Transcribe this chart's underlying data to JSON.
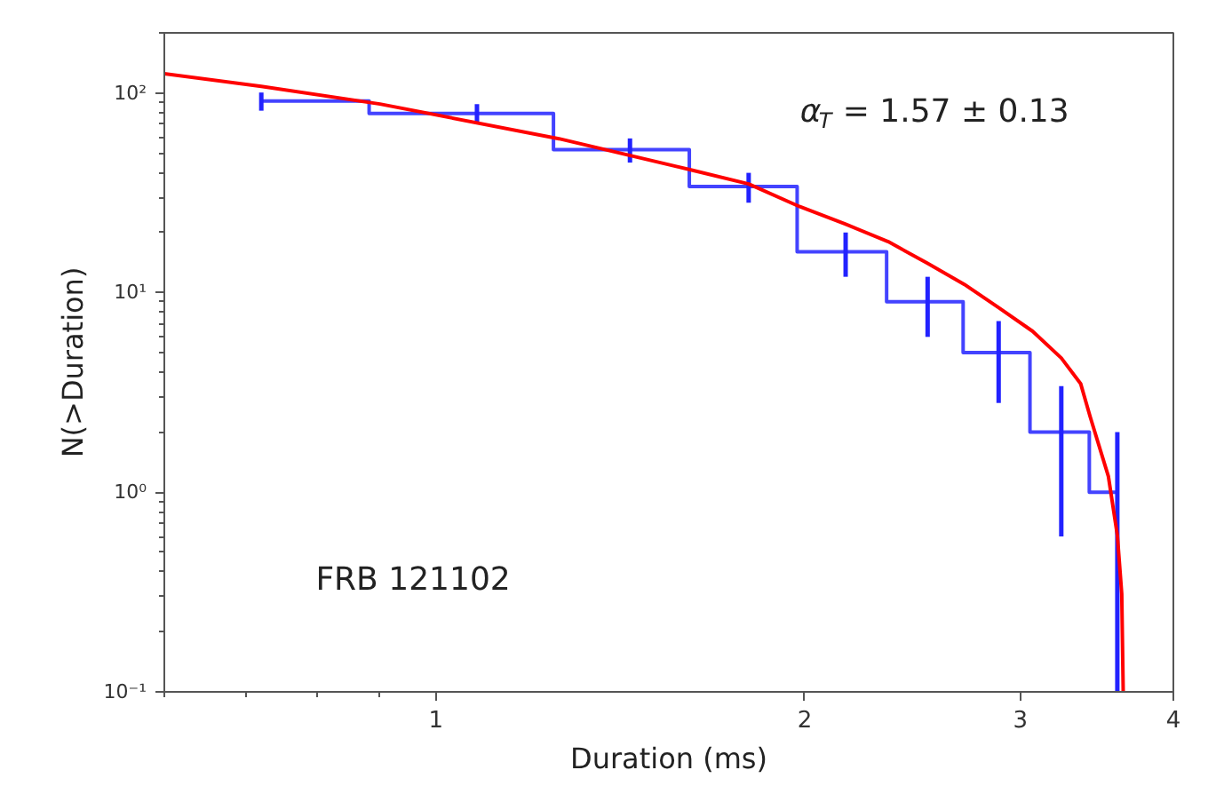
{
  "chart_data": {
    "type": "step",
    "xlabel": "Duration (ms)",
    "ylabel": "N(>Duration)",
    "log": "xy",
    "xlim": [
      0.6,
      4
    ],
    "ylim": [
      0.1,
      200
    ],
    "xticks": [
      1,
      2,
      3,
      4
    ],
    "yticks": [
      {
        "value": 0.1,
        "label": "10⁻¹"
      },
      {
        "value": 1,
        "label": "10⁰"
      },
      {
        "value": 10,
        "label": "10¹"
      },
      {
        "value": 100,
        "label": "10²"
      }
    ],
    "grid": false,
    "annotations": [
      "α$_{T}$ = 1.57 ± 0.13",
      "FRB 121102"
    ],
    "series": [
      {
        "color": "#2222ff",
        "x": [
          0.72,
          1.08,
          1.44,
          1.8,
          2.16,
          2.52,
          2.88,
          3.24,
          3.6
        ],
        "values": [
          91,
          79,
          52,
          34,
          16,
          9,
          5,
          2,
          1
        ],
        "errors": [
          9.5,
          8.9,
          7.2,
          5.8,
          4,
          3,
          2.2,
          1.4,
          [
            0.1,
            2
          ]
        ]
      },
      {
        "type": "line",
        "color": "#ff0000",
        "x": [
          0.6,
          0.72,
          0.9,
          1.26,
          1.62,
          1.8,
          1.98,
          2.16,
          2.34,
          2.52,
          2.7,
          2.88,
          3.07,
          3.24,
          3.36,
          3.42,
          3.54,
          3.6,
          3.63,
          3.64
        ],
        "values": [
          125,
          108,
          88,
          59,
          41,
          35,
          27,
          22,
          18,
          14,
          11,
          8.4,
          6.4,
          4.7,
          3.5,
          2.4,
          1.2,
          0.61,
          0.31,
          0.1
        ]
      }
    ]
  }
}
